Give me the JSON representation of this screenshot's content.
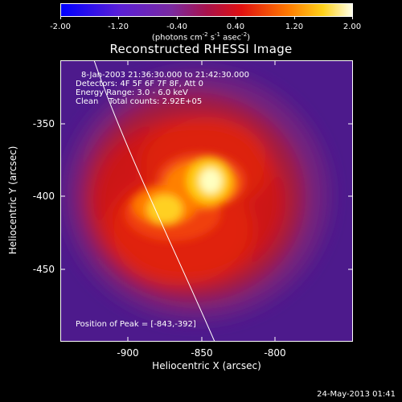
{
  "colorbar": {
    "ticks": [
      "-2.00",
      "-1.20",
      "-0.40",
      "0.40",
      "1.20",
      "2.00"
    ],
    "units_prefix": "(photons cm",
    "units_sup1": "-2",
    "units_mid": " s",
    "units_sup2": "-1",
    "units_end": " asec",
    "units_sup3": "-2",
    "units_close": ")"
  },
  "title": "Reconstructed RHESSI Image",
  "info": {
    "time": "8-Jan-2003 21:36:30.000 to 21:42:30.000",
    "detectors": "Detectors: 4F 5F 6F 7F 8F, Att 0",
    "energy": "Energy Range: 3.0 - 6.0 keV",
    "clean": "Clean    Total counts: 2.92E+05",
    "peak": "Position of Peak = [-843,-392]"
  },
  "axes": {
    "xlabel": "Heliocentric X (arcsec)",
    "ylabel": "Heliocentric Y (arcsec)",
    "xticks": [
      "-900",
      "-850",
      "-800"
    ],
    "yticks": [
      "-350",
      "-400",
      "-450"
    ]
  },
  "timestamp": "24-May-2013 01:41",
  "colors": {
    "background": "#000000",
    "foreground": "#ffffff"
  }
}
